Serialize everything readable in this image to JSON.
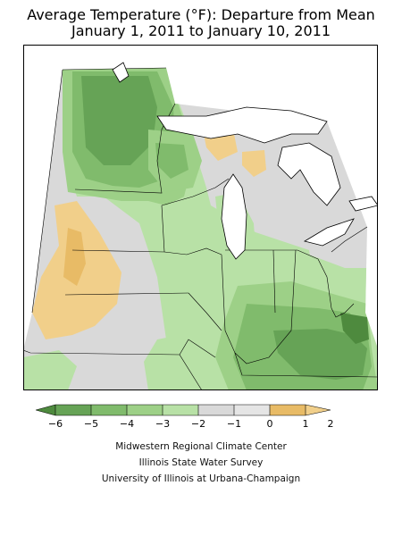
{
  "title_line1": "Average Temperature (°F): Departure from Mean",
  "title_line2": "January 1, 2011 to January 10, 2011",
  "legend": {
    "ticks": [
      "−6",
      "−5",
      "−4",
      "−3",
      "−2",
      "−1",
      "0",
      "1",
      "2"
    ],
    "colors": {
      "lt_-5": "#4e8a3e",
      "-5_-4": "#66a356",
      "-4_-3": "#80bb6c",
      "-3_-2": "#9dd087",
      "-2_-1": "#b8e1a6",
      "-1_0": "#d9d9d9",
      "0_1": "#e5e5e5",
      "1_2": "#e8bb66",
      "gt_2": "#f1cf8a"
    }
  },
  "credits": [
    "Midwestern Regional Climate Center",
    "Illinois State Water Survey",
    "University of Illinois at Urbana-Champaign"
  ]
}
